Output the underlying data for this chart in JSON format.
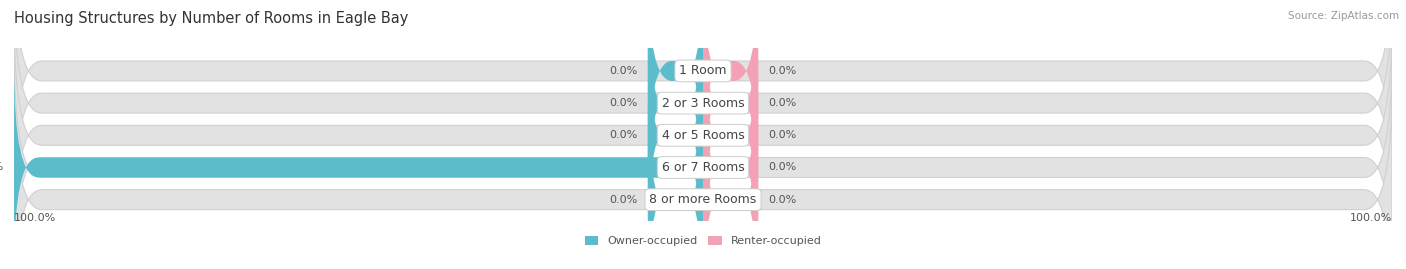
{
  "title": "Housing Structures by Number of Rooms in Eagle Bay",
  "source": "Source: ZipAtlas.com",
  "categories": [
    "1 Room",
    "2 or 3 Rooms",
    "4 or 5 Rooms",
    "6 or 7 Rooms",
    "8 or more Rooms"
  ],
  "owner_values": [
    0.0,
    0.0,
    0.0,
    100.0,
    0.0
  ],
  "renter_values": [
    0.0,
    0.0,
    0.0,
    0.0,
    0.0
  ],
  "owner_color": "#5bbccc",
  "renter_color": "#f4a0b5",
  "bar_bg_color": "#e2e2e2",
  "bar_bg_edge_color": "#d0d0d0",
  "min_bar_width": 8.0,
  "bar_height": 0.62,
  "xlim_left": -100,
  "xlim_right": 100,
  "legend_owner": "Owner-occupied",
  "legend_renter": "Renter-occupied",
  "axis_label_left": "100.0%",
  "axis_label_right": "100.0%",
  "title_fontsize": 10.5,
  "label_fontsize": 8,
  "category_fontsize": 9,
  "source_fontsize": 7.5,
  "bg_color": "#f7f7f7"
}
